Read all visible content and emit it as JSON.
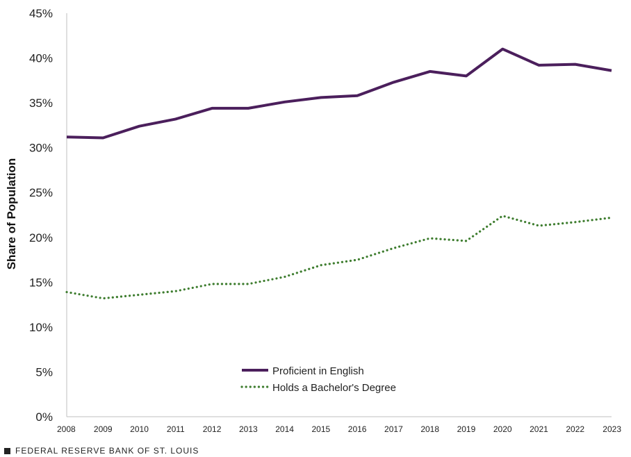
{
  "chart_data": {
    "type": "line",
    "title": "",
    "xlabel": "",
    "ylabel": "Share of Population",
    "x": [
      2008,
      2009,
      2010,
      2011,
      2012,
      2013,
      2014,
      2015,
      2016,
      2017,
      2018,
      2019,
      2020,
      2021,
      2022,
      2023
    ],
    "ylim": [
      0,
      45
    ],
    "yticks": [
      "0%",
      "5%",
      "10%",
      "15%",
      "20%",
      "25%",
      "30%",
      "35%",
      "40%",
      "45%"
    ],
    "grid": false,
    "legend_position": "bottom-center",
    "series": [
      {
        "name": "Proficient in English",
        "color": "#4b1f5c",
        "style": "solid",
        "values": [
          31.2,
          31.1,
          32.4,
          33.2,
          34.4,
          34.4,
          35.1,
          35.6,
          35.8,
          37.3,
          38.5,
          38.0,
          41.0,
          39.2,
          39.3,
          38.6
        ]
      },
      {
        "name": "Holds a Bachelor's Degree",
        "color": "#3e7d2f",
        "style": "dotted",
        "values": [
          13.9,
          13.2,
          13.6,
          14.0,
          14.8,
          14.8,
          15.6,
          16.9,
          17.5,
          18.8,
          19.9,
          19.6,
          22.4,
          21.3,
          21.7,
          22.2
        ]
      }
    ]
  },
  "footer": {
    "source": "FEDERAL RESERVE BANK OF ST. LOUIS"
  }
}
